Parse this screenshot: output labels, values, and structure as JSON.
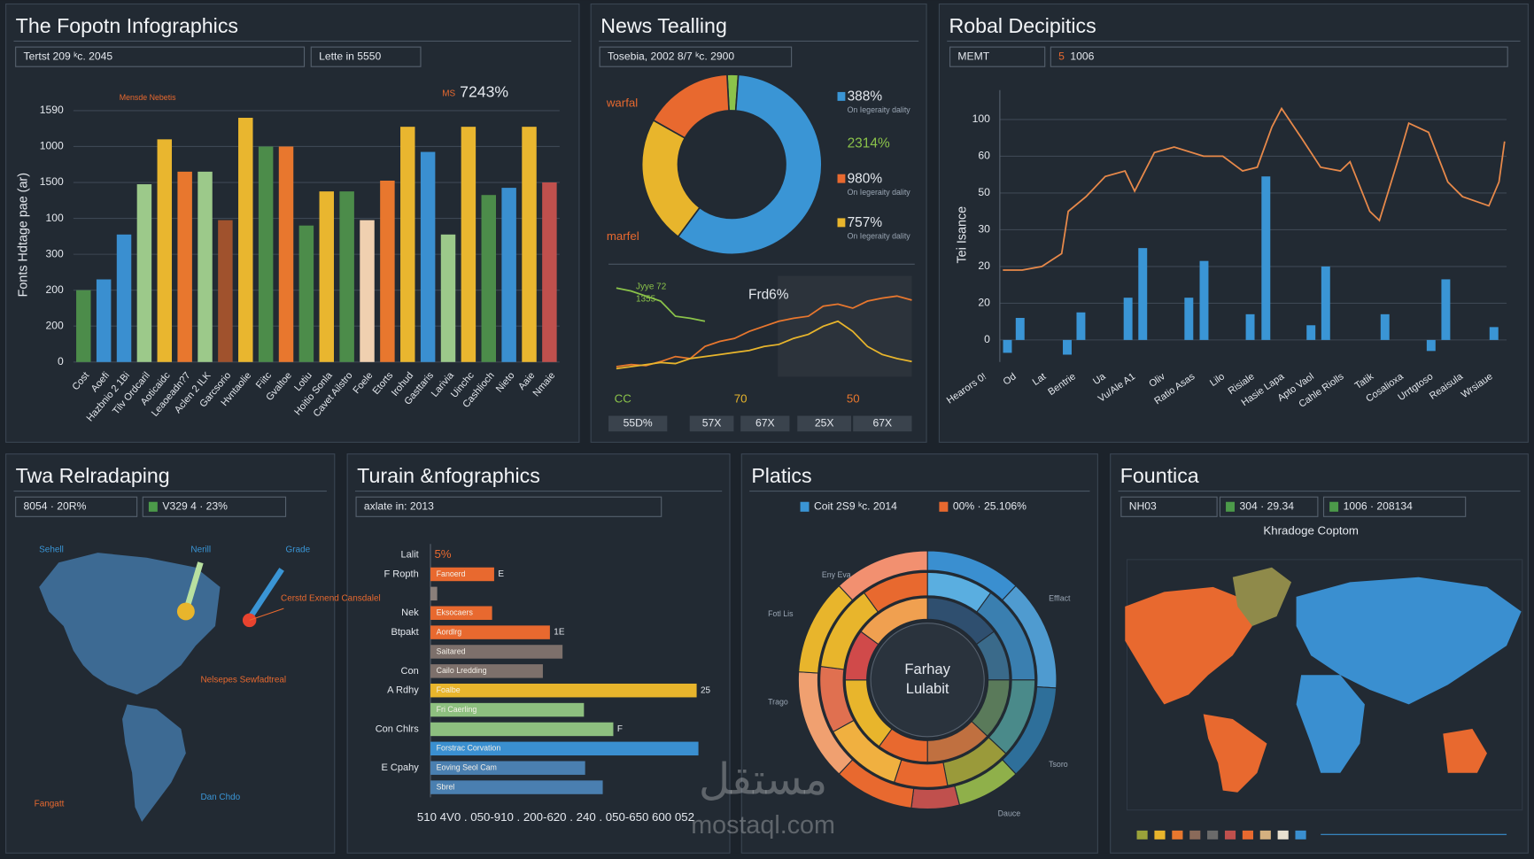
{
  "chart_data": [
    {
      "type": "bar",
      "title": "The Fopotn Infographics",
      "header_boxes": [
        {
          "label": "Tertst 209 ᵏc. 2045"
        },
        {
          "label": "Lette in 5550"
        }
      ],
      "y_label": "Fonts Hdtage pae (ar)",
      "annotation_prefix": "MS",
      "annotation": "7243%",
      "note": "Mensde Nebetis",
      "categories": [
        "Cost",
        "Aoefi",
        "Hazbnio 2 1Bi",
        "Tilv Ordcaril",
        "Aoticaidc",
        "Leaoeadn?7",
        "Aclen 2 ILK",
        "Garcsorio",
        "Hvntaolie",
        "Fiitc",
        "Gvaltoe",
        "Lotiu",
        "Hoitio Sonla",
        "Cavet Ailstro",
        "Foele",
        "Etorts",
        "Irohud",
        "Gasttaris",
        "Larivia",
        "Uinchc",
        "Cashlioch",
        "Nieto",
        "Aaie",
        "Nmaie"
      ],
      "values": [
        400,
        460,
        710,
        990,
        1240,
        1060,
        1060,
        790,
        1360,
        1200,
        1200,
        760,
        950,
        950,
        790,
        1010,
        1310,
        1170,
        710,
        1310,
        930,
        970,
        1310,
        1000
      ],
      "colors": [
        "#4c8c4a",
        "#3a8fd0",
        "#3a8fd0",
        "#9cc98a",
        "#e9b62f",
        "#e8772e",
        "#9cc98a",
        "#a0522d",
        "#e9b62f",
        "#4c8c4a",
        "#e8772e",
        "#4c8c4a",
        "#e9b62f",
        "#4c8c4a",
        "#f0d0b0",
        "#e8772e",
        "#e9b62f",
        "#3a8fd0",
        "#9cc98a",
        "#e9b62f",
        "#4c8c4a",
        "#3a8fd0",
        "#e9b62f",
        "#c0504d"
      ],
      "ylim": [
        0,
        1400
      ],
      "yticks": [
        0,
        200,
        {
          "value": 400,
          "label": "200"
        },
        {
          "value": 600,
          "label": "300"
        },
        {
          "value": 800,
          "label": "100"
        },
        {
          "value": 1000,
          "label": "1500"
        },
        {
          "value": 1200,
          "label": "1000"
        },
        {
          "value": 1400,
          "label": "1590"
        }
      ],
      "grid": true
    },
    {
      "type": "pie",
      "title": "News Tealling",
      "header_boxes": [
        {
          "label": "Tosebia, 2002 8/7 ᵏc. 2900"
        }
      ],
      "values": [
        2,
        59,
        23,
        16
      ],
      "colors": [
        "#8bc34a",
        "#3a95d5",
        "#e8b52c",
        "#e8692f"
      ],
      "legend": [
        {
          "label": "388%",
          "color": "#3a95d5",
          "note": "On Iegeraity dality"
        },
        {
          "label": "2314%",
          "color": "#8bc34a"
        },
        {
          "label": "980%",
          "color": "#e8692f",
          "note": "On Iegeraity dality"
        },
        {
          "label": "757%",
          "color": "#e8b52c",
          "note": "On Iegeraity dality"
        }
      ],
      "side_labels": [
        "warfal",
        "marfel"
      ]
    },
    {
      "type": "line",
      "title": "Frd6%",
      "annotations": [
        "Jyye 72",
        "1355"
      ],
      "series": [
        {
          "color": "#e8772e",
          "values": [
            10,
            12,
            11,
            15,
            20,
            18,
            30,
            35,
            38,
            45,
            50,
            55,
            58,
            60,
            70,
            72,
            68,
            75,
            78,
            80,
            76
          ]
        },
        {
          "color": "#e8b52c",
          "values": [
            8,
            10,
            12,
            14,
            13,
            18,
            20,
            22,
            24,
            26,
            30,
            32,
            38,
            42,
            50,
            55,
            45,
            30,
            22,
            18,
            15
          ]
        },
        {
          "color": "#8bc34a",
          "values": [
            88,
            85,
            80,
            75,
            60,
            58,
            55,
            null,
            null,
            null,
            null,
            null,
            null,
            null,
            null,
            null,
            null,
            null,
            null,
            null,
            null
          ]
        }
      ],
      "ylim": [
        0,
        100
      ],
      "bottom_labels": [
        {
          "label": "CC",
          "color": "#8bc34a"
        },
        {
          "label": "70",
          "color": "#e8b52c"
        },
        {
          "label": "50",
          "color": "#e8772e"
        }
      ],
      "boxes": [
        "55D%",
        "57X",
        "67X",
        "25X",
        "67X"
      ]
    },
    {
      "type": "combo",
      "title": "Robal Decipitics",
      "header_boxes": [
        {
          "label": "MEMT"
        },
        {
          "label": "1006",
          "prefix": "5",
          "prefix_color": "#e8692f"
        }
      ],
      "y_label": "Tei Isance",
      "ylim": [
        -12,
        136
      ],
      "yticks": [
        0,
        20,
        {
          "value": 40,
          "label": "20"
        },
        {
          "value": 60,
          "label": "30"
        },
        {
          "value": 80,
          "label": "50"
        },
        {
          "value": 100,
          "label": "60"
        },
        {
          "value": 120,
          "label": "100"
        }
      ],
      "xlim": [
        0,
        100
      ],
      "grid": true,
      "bars": {
        "color": "#3a95d5",
        "x": [
          1.5,
          4,
          13.3,
          16,
          25.3,
          28.2,
          37.3,
          40.3,
          49.4,
          52.5,
          61.4,
          64.3,
          76,
          85.1,
          88,
          97.5
        ],
        "values": [
          -7,
          12,
          -8,
          15,
          23,
          50,
          23,
          43,
          14,
          89,
          8,
          40,
          14,
          -6,
          33,
          7
        ]
      },
      "line": {
        "color": "#e8894a",
        "x": [
          0.6,
          4.4,
          8.3,
          12.2,
          13.5,
          17,
          20.8,
          24.7,
          26.6,
          30.5,
          34.4,
          40.2,
          44,
          47.9,
          50.8,
          53.7,
          55.6,
          59.5,
          63.3,
          67.2,
          69.1,
          73,
          74.9,
          78.8,
          80.7,
          84.6,
          88.4,
          91.3,
          96.5,
          98.5,
          99.6
        ],
        "values": [
          38,
          38,
          40,
          47,
          70,
          78,
          89,
          92,
          81,
          102,
          105,
          100,
          100,
          92,
          94,
          116,
          126,
          110,
          94,
          92,
          97,
          70,
          65,
          100,
          118,
          113,
          86,
          78,
          73,
          86,
          108
        ]
      },
      "x_labels": [
        "Hearors 0!",
        "Od",
        "Lat",
        "Bentrie",
        "Ua",
        "Vu/Ale A1",
        "Oliv",
        "Ratio Asas",
        "Lilo",
        "Risiale",
        "Hasie Lapa",
        "Apto Vaol",
        "Cahle Riolls",
        "Tatik",
        "Cosalioxa",
        "Urrtgtoso",
        "Reaisula",
        "Wrsiaue"
      ]
    },
    {
      "type": "map",
      "title": "Twa Relradaping",
      "header_boxes": [
        {
          "label": "8054 · 20R%"
        },
        {
          "label": "V329 4 · 23%",
          "color": "#4c9a4a"
        }
      ],
      "labels": [
        {
          "text": "Sehell",
          "color": "#3a95d5"
        },
        {
          "text": "Nerill",
          "color": "#3a95d5"
        },
        {
          "text": "Grade",
          "color": "#3a95d5"
        },
        {
          "text": "Cerstd Exnend Cansdalel",
          "color": "#e8692f"
        },
        {
          "text": "Nelsepes Sewfadtreal",
          "color": "#e8692f"
        },
        {
          "text": "Fangatt",
          "color": "#e8692f"
        },
        {
          "text": "Dan Chdo",
          "color": "#3a95d5"
        }
      ]
    },
    {
      "type": "hbar",
      "title": "Turain &nfographics",
      "header_boxes": [
        {
          "label": "axlate in: 2013"
        }
      ],
      "annotation": "Lalit",
      "annotation_value": "5%",
      "categories": [
        "F Ropth",
        null,
        "Nek",
        "Btpakt",
        null,
        "Con",
        "A Rdhy",
        null,
        "Con Chlrs",
        null,
        "E Cpahy",
        null
      ],
      "values": [
        21.7,
        2.3,
        21,
        40.7,
        45,
        38.3,
        90.7,
        52.3,
        62.3,
        91.3,
        52.7,
        58.7
      ],
      "colors": [
        "#e8692f",
        "#8a7f7a",
        "#e8692f",
        "#e8692f",
        "#7d706b",
        "#7d706b",
        "#e8b52c",
        "#8dbf7f",
        "#8dbf7f",
        "#3a8fd0",
        "#4a7fb0",
        "#4a7fb0"
      ],
      "bar_labels": [
        "Fanoerd",
        null,
        "Eksocaers",
        "Aordlrg",
        "Saitared",
        "Cailo Lredding",
        "Foalbe",
        "Fri Caerling",
        null,
        "Forstrac Corvation",
        "Eoving Seol Cam",
        "Sbrel"
      ],
      "end_labels": [
        "E",
        null,
        null,
        "1E",
        null,
        null,
        "25",
        null,
        "F",
        null,
        null,
        null
      ],
      "xlim": [
        0,
        100
      ],
      "x_axis_label": "510 4V0 . 050-910 . 200-620 . 240 . 050-650 600 052"
    },
    {
      "type": "sunburst",
      "title": "Platics",
      "legend": [
        {
          "label": "Coit 2S9 ᵏc. 2014",
          "color": "#3a95d5"
        },
        {
          "label": "00% · 25.106%",
          "color": "#e8692f"
        }
      ],
      "center_label": [
        "Farhay",
        "Lulabit"
      ],
      "rings": [
        {
          "values": [
            12,
            14,
            12,
            8,
            6,
            10,
            14,
            12,
            12
          ],
          "colors": [
            "#3a8fd0",
            "#4f9bd0",
            "#2e6f9a",
            "#8fb04a",
            "#c0504d",
            "#e8692f",
            "#f0a070",
            "#e8b52c",
            "#f29070"
          ]
        },
        {
          "values": [
            10,
            15,
            12,
            10,
            8,
            12,
            10,
            13,
            10
          ],
          "colors": [
            "#5aaee0",
            "#3a7fb0",
            "#4a8a8a",
            "#9a9a3a",
            "#e8692f",
            "#f0b040",
            "#e07050",
            "#e8b52c",
            "#e8692f"
          ]
        },
        {
          "values": [
            15,
            10,
            12,
            13,
            10,
            15,
            10,
            15
          ],
          "colors": [
            "#2f4f6f",
            "#3a6a8a",
            "#5a7a5a",
            "#c07040",
            "#e8692f",
            "#e8b52c",
            "#d04a4a",
            "#f0a050"
          ]
        }
      ],
      "notes": [
        "Eny Eva",
        "Fotl Lis",
        "Trago",
        "Efflact",
        "Tsoro",
        "Dauce"
      ]
    },
    {
      "type": "map",
      "title": "Fountica",
      "header_boxes": [
        {
          "label": "NH03"
        },
        {
          "label": "304 · 29.34",
          "color": "#4c9a4a"
        },
        {
          "label": "1006 · 208134",
          "color": "#4c9a4a"
        }
      ],
      "subtitle": "Khradoge Coptom",
      "legend_colors": [
        "#9aa23a",
        "#e8b52c",
        "#e8772e",
        "#8a6a5a",
        "#6a6a6a",
        "#c0504d",
        "#e8692f",
        "#d4b080",
        "#e8e0d0",
        "#3a8fd0"
      ]
    }
  ],
  "watermark": {
    "arabic": "مستقل",
    "latin": "mostaql.com"
  }
}
